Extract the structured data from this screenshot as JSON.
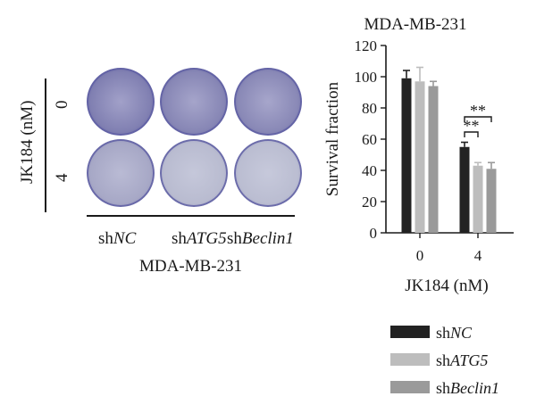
{
  "left_panel": {
    "y_axis_label": "JK184 (nM)",
    "rows": [
      {
        "dose": "0",
        "wells": [
          {
            "name": "shNC",
            "stain": 0.82
          },
          {
            "name": "shATG5",
            "stain": 0.72
          },
          {
            "name": "shBeclin1",
            "stain": 0.68
          }
        ]
      },
      {
        "dose": "4",
        "wells": [
          {
            "name": "shNC",
            "stain": 0.3
          },
          {
            "name": "shATG5",
            "stain": 0.12
          },
          {
            "name": "shBeclin1",
            "stain": 0.1
          }
        ]
      }
    ],
    "columns": [
      {
        "prefix": "sh",
        "gene": "NC"
      },
      {
        "prefix": "sh",
        "gene": "ATG5"
      },
      {
        "prefix": "sh",
        "gene": "Beclin1"
      }
    ],
    "cell_line": "MDA-MB-231"
  },
  "chart_data": {
    "type": "bar",
    "title": "MDA-MB-231",
    "xlabel": "JK184 (nM)",
    "ylabel": "Survival fraction",
    "ylim": [
      0,
      120
    ],
    "yticks": [
      0,
      20,
      40,
      60,
      80,
      100,
      120
    ],
    "categories": [
      "0",
      "4"
    ],
    "series": [
      {
        "name": "shNC",
        "prefix": "sh",
        "gene": "NC",
        "color": "#222222",
        "values": [
          99,
          55
        ],
        "errors": [
          5,
          3
        ]
      },
      {
        "name": "shATG5",
        "prefix": "sh",
        "gene": "ATG5",
        "color": "#bdbdbd",
        "values": [
          97,
          43
        ],
        "errors": [
          9,
          2
        ]
      },
      {
        "name": "shBeclin1",
        "prefix": "sh",
        "gene": "Beclin1",
        "color": "#9a9a9a",
        "values": [
          94,
          41
        ],
        "errors": [
          3,
          4
        ]
      }
    ],
    "significance": [
      {
        "category": "4",
        "between": [
          "shNC",
          "shATG5"
        ],
        "label": "**"
      },
      {
        "category": "4",
        "between": [
          "shNC",
          "shBeclin1"
        ],
        "label": "**"
      }
    ],
    "legend_position": "bottom-right"
  }
}
